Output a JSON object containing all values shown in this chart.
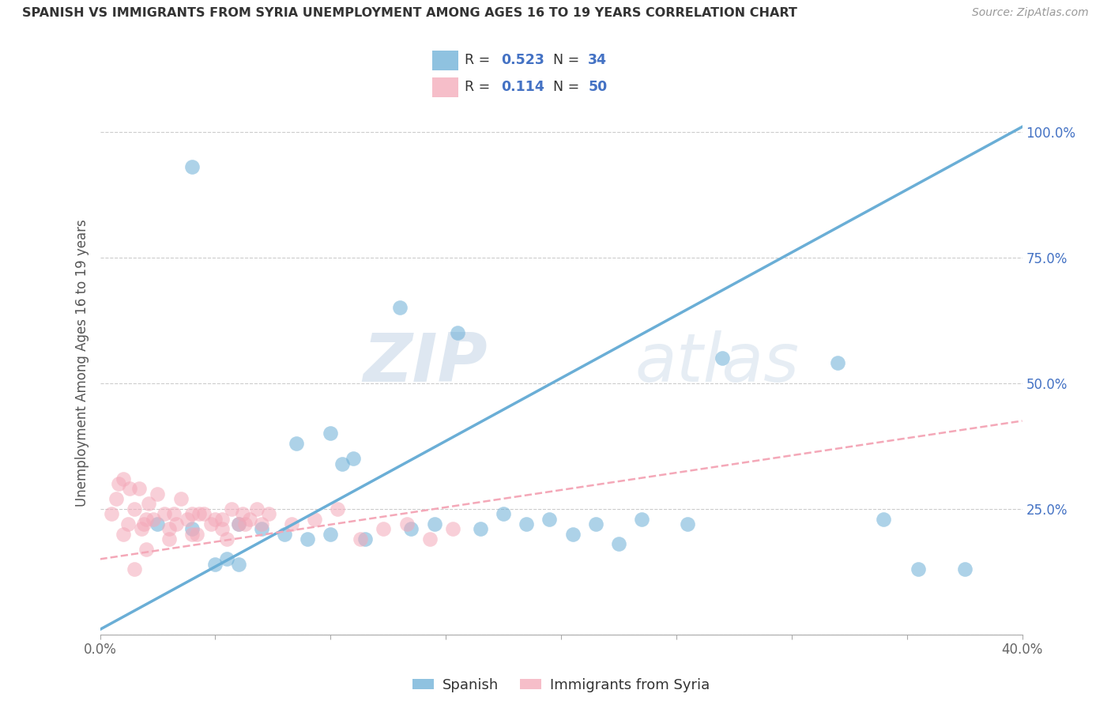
{
  "title": "SPANISH VS IMMIGRANTS FROM SYRIA UNEMPLOYMENT AMONG AGES 16 TO 19 YEARS CORRELATION CHART",
  "source": "Source: ZipAtlas.com",
  "ylabel": "Unemployment Among Ages 16 to 19 years",
  "xlim": [
    0.0,
    0.4
  ],
  "ylim": [
    0.0,
    1.08
  ],
  "ytick_positions": [
    0.0,
    0.25,
    0.5,
    0.75,
    1.0
  ],
  "yticklabels": [
    "",
    "25.0%",
    "50.0%",
    "75.0%",
    "100.0%"
  ],
  "xtick_positions": [
    0.0,
    0.05,
    0.1,
    0.15,
    0.2,
    0.25,
    0.3,
    0.35,
    0.4
  ],
  "xticklabels": [
    "0.0%",
    "",
    "",
    "",
    "",
    "",
    "",
    "",
    "40.0%"
  ],
  "R_spanish": 0.523,
  "N_spanish": 34,
  "R_syria": 0.114,
  "N_syria": 50,
  "spanish_color": "#6aaed6",
  "syria_color": "#f4a8b8",
  "legend_spanish": "Spanish",
  "legend_syria": "Immigrants from Syria",
  "watermark_zip": "ZIP",
  "watermark_atlas": "atlas",
  "blue_line_x": [
    0.0,
    0.4
  ],
  "blue_line_y": [
    0.01,
    1.01
  ],
  "pink_line_x": [
    0.0,
    0.4
  ],
  "pink_line_y": [
    0.15,
    0.425
  ],
  "spanish_x": [
    0.085,
    0.105,
    0.04,
    0.13,
    0.155,
    0.175,
    0.195,
    0.215,
    0.235,
    0.255,
    0.27,
    0.1,
    0.11,
    0.025,
    0.04,
    0.06,
    0.07,
    0.08,
    0.09,
    0.1,
    0.115,
    0.135,
    0.145,
    0.165,
    0.185,
    0.205,
    0.225,
    0.34,
    0.355,
    0.375,
    0.05,
    0.06,
    0.055,
    0.32
  ],
  "spanish_y": [
    0.38,
    0.34,
    0.93,
    0.65,
    0.6,
    0.24,
    0.23,
    0.22,
    0.23,
    0.22,
    0.55,
    0.4,
    0.35,
    0.22,
    0.21,
    0.22,
    0.21,
    0.2,
    0.19,
    0.2,
    0.19,
    0.21,
    0.22,
    0.21,
    0.22,
    0.2,
    0.18,
    0.23,
    0.13,
    0.13,
    0.14,
    0.14,
    0.15,
    0.54
  ],
  "syria_x": [
    0.005,
    0.007,
    0.01,
    0.012,
    0.015,
    0.017,
    0.019,
    0.021,
    0.025,
    0.028,
    0.03,
    0.032,
    0.035,
    0.038,
    0.04,
    0.042,
    0.045,
    0.048,
    0.05,
    0.053,
    0.057,
    0.06,
    0.062,
    0.065,
    0.068,
    0.07,
    0.008,
    0.013,
    0.018,
    0.023,
    0.033,
    0.043,
    0.053,
    0.063,
    0.073,
    0.083,
    0.093,
    0.103,
    0.113,
    0.123,
    0.133,
    0.143,
    0.153,
    0.01,
    0.02,
    0.03,
    0.04,
    0.055,
    0.02,
    0.015
  ],
  "syria_y": [
    0.24,
    0.27,
    0.31,
    0.22,
    0.25,
    0.29,
    0.22,
    0.26,
    0.28,
    0.24,
    0.21,
    0.24,
    0.27,
    0.23,
    0.24,
    0.2,
    0.24,
    0.22,
    0.23,
    0.21,
    0.25,
    0.22,
    0.24,
    0.23,
    0.25,
    0.22,
    0.3,
    0.29,
    0.21,
    0.23,
    0.22,
    0.24,
    0.23,
    0.22,
    0.24,
    0.22,
    0.23,
    0.25,
    0.19,
    0.21,
    0.22,
    0.19,
    0.21,
    0.2,
    0.23,
    0.19,
    0.2,
    0.19,
    0.17,
    0.13
  ]
}
